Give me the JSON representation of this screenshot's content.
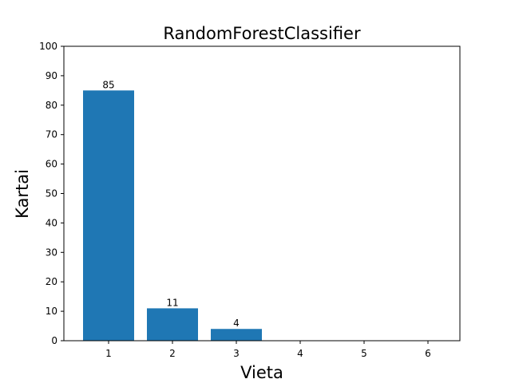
{
  "chart_data": {
    "type": "bar",
    "title": "RandomForestClassifier",
    "xlabel": "Vieta",
    "ylabel": "Kartai",
    "categories": [
      "1",
      "2",
      "3",
      "4",
      "5",
      "6"
    ],
    "values": [
      85,
      11,
      4,
      0,
      0,
      0
    ],
    "data_labels": [
      "85",
      "11",
      "4",
      "",
      "",
      ""
    ],
    "ylim": [
      0,
      100
    ],
    "yticks": [
      0,
      10,
      20,
      30,
      40,
      50,
      60,
      70,
      80,
      90,
      100
    ],
    "bar_color": "#1f77b4",
    "grid": false,
    "legend": "none"
  }
}
